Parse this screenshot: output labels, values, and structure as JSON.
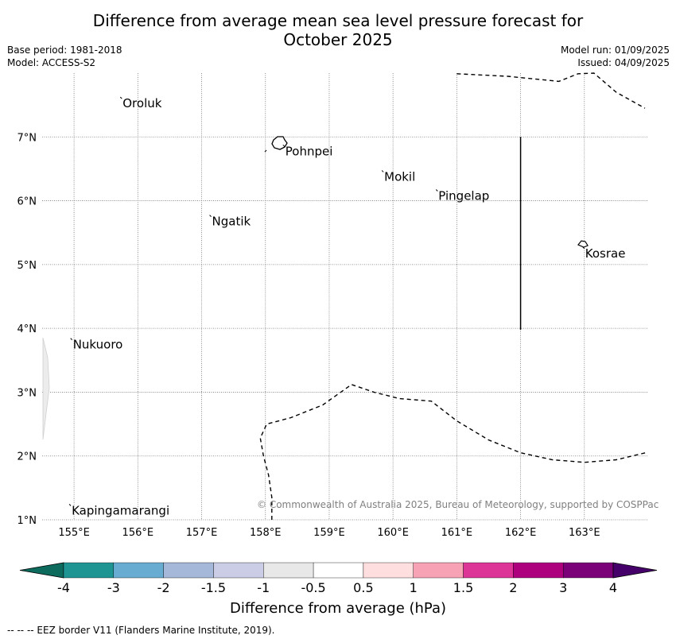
{
  "title_line1": "Difference from average mean sea level pressure forecast for",
  "title_line2": "October 2025",
  "meta": {
    "base_period": "Base period: 1981-2018",
    "model": "Model: ACCESS-S2",
    "model_run": "Model run: 01/09/2025",
    "issued": "Issued: 04/09/2025"
  },
  "map": {
    "lon_range": [
      154.5,
      164.0
    ],
    "lat_range": [
      1.0,
      8.0
    ],
    "lat_ticks": [
      {
        "value": 7,
        "label": "7°N"
      },
      {
        "value": 6,
        "label": "6°N"
      },
      {
        "value": 5,
        "label": "5°N"
      },
      {
        "value": 4,
        "label": "4°N"
      },
      {
        "value": 3,
        "label": "3°N"
      },
      {
        "value": 2,
        "label": "2°N"
      },
      {
        "value": 1,
        "label": "1°N"
      }
    ],
    "lon_ticks": [
      {
        "value": 155,
        "label": "155°E"
      },
      {
        "value": 156,
        "label": "156°E"
      },
      {
        "value": 157,
        "label": "157°E"
      },
      {
        "value": 158,
        "label": "158°E"
      },
      {
        "value": 159,
        "label": "159°E"
      },
      {
        "value": 160,
        "label": "160°E"
      },
      {
        "value": 161,
        "label": "161°E"
      },
      {
        "value": 162,
        "label": "162°E"
      },
      {
        "value": 163,
        "label": "163°E"
      }
    ],
    "places": [
      {
        "name": "Oroluk",
        "lon": 155.75,
        "lat": 7.6
      },
      {
        "name": "Pohnpei",
        "lon": 158.3,
        "lat": 6.85
      },
      {
        "name": "Mokil",
        "lon": 159.85,
        "lat": 6.45
      },
      {
        "name": "Pingelap",
        "lon": 160.7,
        "lat": 6.15
      },
      {
        "name": "Ngatik",
        "lon": 157.15,
        "lat": 5.75
      },
      {
        "name": "Kosrae",
        "lon": 163.0,
        "lat": 5.25
      },
      {
        "name": "Nukuoro",
        "lon": 154.97,
        "lat": 3.82
      },
      {
        "name": "Kapingamarangi",
        "lon": 154.95,
        "lat": 1.22
      }
    ],
    "eez_lines": [
      [
        [
          161.0,
          7.99
        ],
        [
          161.8,
          7.95
        ],
        [
          162.6,
          7.87
        ],
        [
          162.9,
          7.99
        ],
        [
          163.15,
          8.0
        ],
        [
          163.5,
          7.7
        ],
        [
          163.95,
          7.45
        ]
      ],
      [
        [
          158.1,
          1.0
        ],
        [
          158.1,
          1.35
        ],
        [
          158.05,
          1.7
        ],
        [
          157.97,
          2.0
        ],
        [
          157.92,
          2.28
        ],
        [
          158.02,
          2.5
        ],
        [
          158.4,
          2.6
        ],
        [
          158.9,
          2.8
        ],
        [
          159.35,
          3.12
        ],
        [
          159.7,
          3.0
        ],
        [
          160.1,
          2.9
        ],
        [
          160.6,
          2.86
        ],
        [
          161.0,
          2.55
        ],
        [
          161.5,
          2.25
        ],
        [
          162.0,
          2.05
        ],
        [
          162.5,
          1.94
        ],
        [
          163.0,
          1.9
        ],
        [
          163.5,
          1.94
        ],
        [
          164.0,
          2.06
        ]
      ]
    ],
    "boundary_line": {
      "lon": 162.0,
      "lat_start": 7.0,
      "lat_end": 3.98
    }
  },
  "colorbar": {
    "title": "Difference from average (hPa)",
    "colors": [
      "#0c6b5c",
      "#1f9593",
      "#68acd2",
      "#a6b8da",
      "#cbcde6",
      "#e8e8e8",
      "#ffffff",
      "#ffdedf",
      "#f8a2b5",
      "#dd3597",
      "#ae017e",
      "#7a0177",
      "#46006a"
    ],
    "labels": [
      "-4",
      "-3",
      "-2",
      "-1.5",
      "-1",
      "-0.5",
      "0.5",
      "1",
      "1.5",
      "2",
      "3",
      "4"
    ]
  },
  "copyright": "© Commonwealth of Australia 2025, Bureau of Meteorology, supported by COSPPac",
  "footer": "--  --  -- EEZ border V11 (Flanders Marine Institute, 2019)."
}
